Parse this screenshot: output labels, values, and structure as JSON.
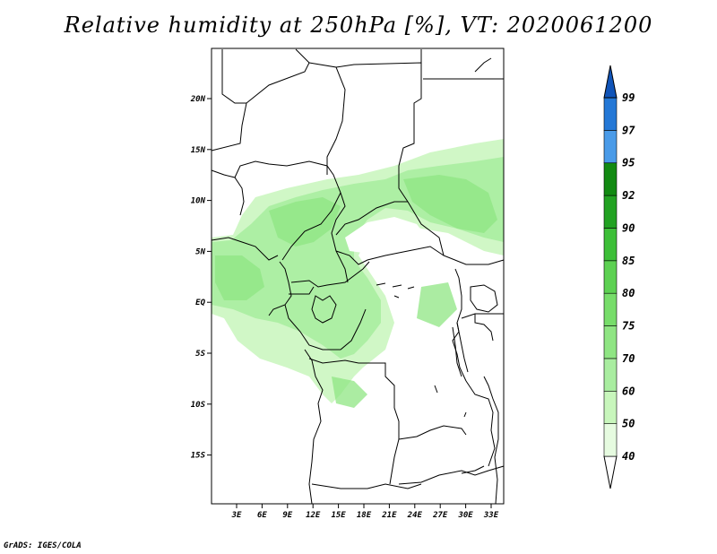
{
  "title": "Relative humidity at 250hPa [%], VT: 2020061200",
  "credit": "GrADS: IGES/COLA",
  "map": {
    "lat_labels": [
      "20N",
      "15N",
      "10N",
      "5N",
      "EQ",
      "5S",
      "10S",
      "15S"
    ],
    "lon_labels": [
      "3E",
      "6E",
      "9E",
      "12E",
      "15E",
      "18E",
      "21E",
      "24E",
      "27E",
      "30E",
      "33E"
    ]
  },
  "colorbar": {
    "levels": [
      "40",
      "50",
      "60",
      "70",
      "75",
      "80",
      "85",
      "90",
      "92",
      "95",
      "97",
      "99"
    ],
    "colors": [
      "#ffffff",
      "#e6fbe0",
      "#c8f6bc",
      "#a9eda0",
      "#8fe583",
      "#77dd6a",
      "#5dd152",
      "#3dbf38",
      "#22a222",
      "#128a12",
      "#4a9be8",
      "#2478d6",
      "#1054b8"
    ]
  }
}
